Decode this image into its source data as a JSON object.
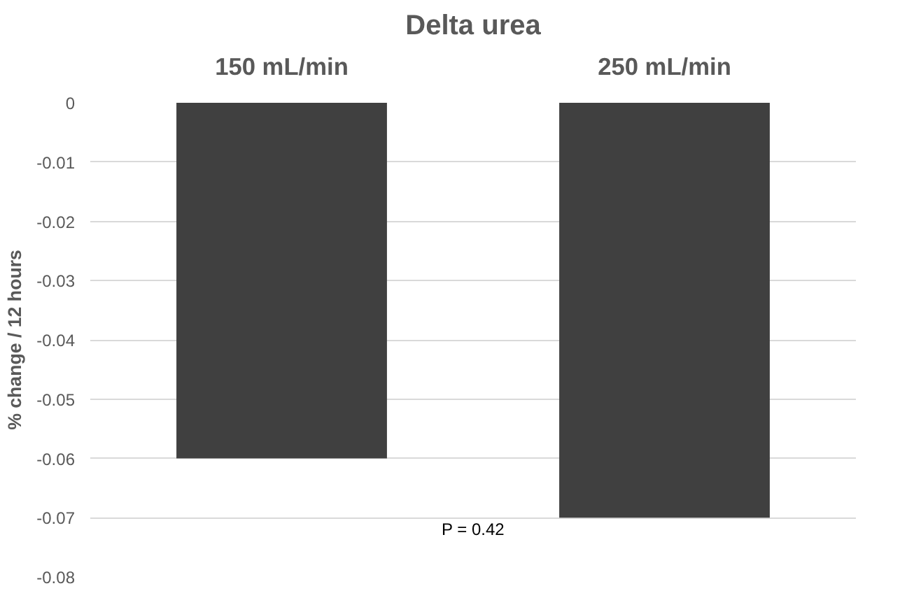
{
  "chart_data": {
    "type": "bar",
    "title": "Delta urea",
    "ylabel": "% change / 12 hours",
    "categories": [
      "150 mL/min",
      "250 mL/min"
    ],
    "series": [
      {
        "color": "#404040",
        "values": [
          -0.06,
          -0.07
        ]
      }
    ],
    "ylim": [
      -0.08,
      0
    ],
    "yticks": [
      0,
      -0.01,
      -0.02,
      -0.03,
      -0.04,
      -0.05,
      -0.06,
      -0.07,
      -0.08
    ],
    "grid": "y",
    "annotations": [
      "P = 0.42"
    ]
  }
}
